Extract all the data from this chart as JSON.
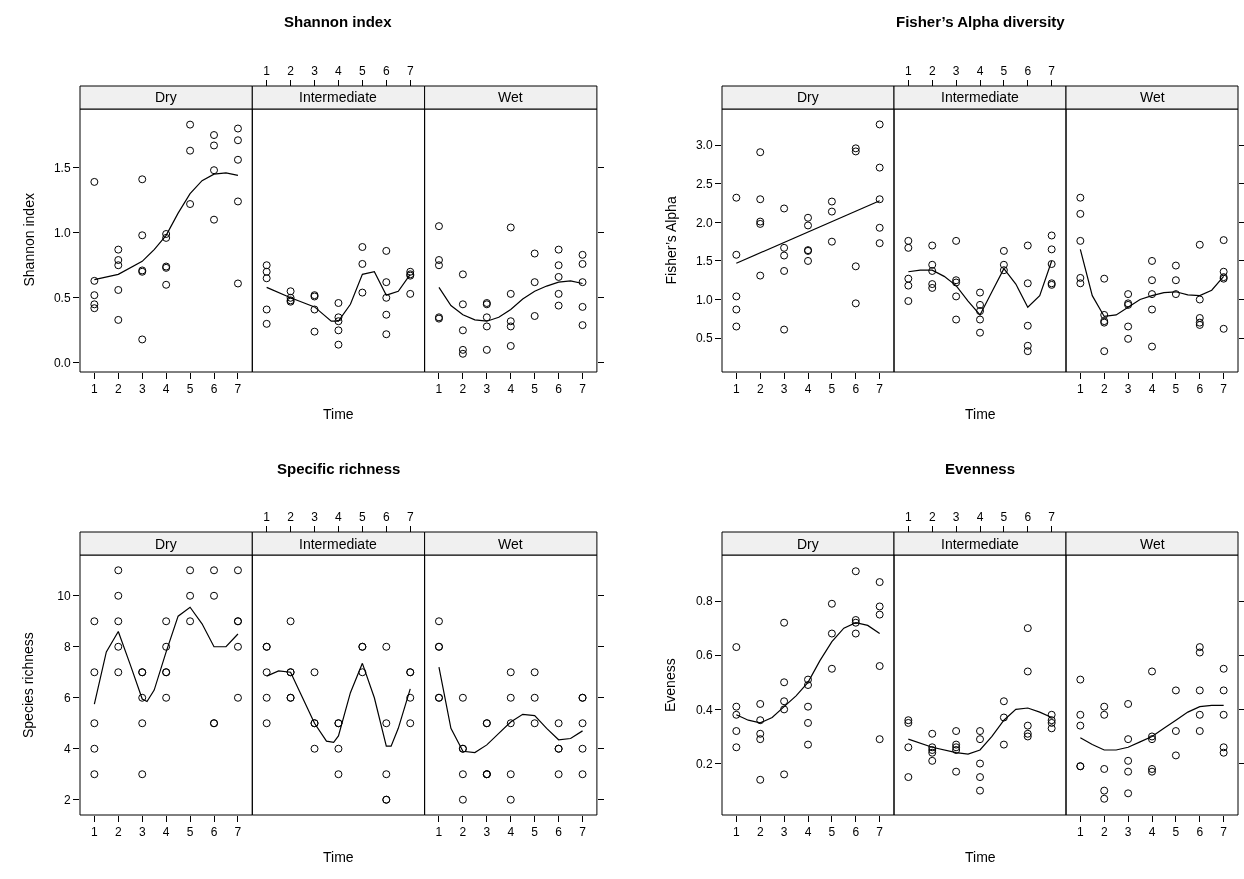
{
  "chart_data": [
    {
      "type": "scatter",
      "subtitle": "Dry",
      "ylabel": "Shannon index",
      "xlim": [
        0.4,
        7.6
      ],
      "xticks": [
        1,
        2,
        3,
        4,
        5,
        6,
        7
      ],
      "ylim": [
        -0.07,
        1.95
      ],
      "yticks": [
        {
          "value": 0,
          "label": "0.0"
        },
        0.5,
        {
          "value": 1,
          "label": "1.0"
        },
        1.5
      ],
      "series": [
        {
          "marker": "circle",
          "color": "#000000",
          "x": [
            1,
            1,
            1,
            1,
            1,
            2,
            2,
            2,
            2,
            2,
            3,
            3,
            3,
            3,
            3,
            4,
            4,
            4,
            4,
            4,
            5,
            5,
            5,
            6,
            6,
            6,
            6,
            7,
            7,
            7,
            7,
            7
          ],
          "values": [
            1.39,
            0.63,
            0.52,
            0.45,
            0.42,
            0.87,
            0.79,
            0.75,
            0.56,
            0.33,
            1.41,
            0.98,
            0.71,
            0.7,
            0.18,
            0.99,
            0.96,
            0.74,
            0.73,
            0.6,
            1.83,
            1.63,
            1.22,
            1.75,
            1.67,
            1.48,
            1.1,
            1.8,
            1.71,
            1.56,
            1.24,
            0.61
          ]
        },
        {
          "type": "line",
          "color": "#000000",
          "x": [
            1,
            2,
            3,
            3.5,
            4,
            4.5,
            5,
            5.5,
            6,
            6.5,
            7
          ],
          "values": [
            0.64,
            0.68,
            0.78,
            0.87,
            0.98,
            1.15,
            1.3,
            1.4,
            1.45,
            1.46,
            1.44
          ]
        }
      ]
    },
    {
      "type": "scatter",
      "title": "Shannon index",
      "subtitle": "Intermediate",
      "xlabel": "Time",
      "xlim": [
        0.4,
        7.6
      ],
      "xticks": [
        1,
        2,
        3,
        4,
        5,
        6,
        7
      ],
      "ylim": [
        -0.07,
        1.95
      ],
      "tick_labels": "x",
      "series": [
        {
          "marker": "circle",
          "color": "#000000",
          "x": [
            1,
            1,
            1,
            1,
            1,
            2,
            2,
            2,
            2,
            3,
            3,
            3,
            3,
            4,
            4,
            4,
            4,
            4,
            5,
            5,
            5,
            6,
            6,
            6,
            6,
            6,
            7,
            7,
            7,
            7
          ],
          "values": [
            0.75,
            0.7,
            0.65,
            0.41,
            0.3,
            0.55,
            0.5,
            0.48,
            0.47,
            0.52,
            0.51,
            0.41,
            0.24,
            0.46,
            0.35,
            0.32,
            0.25,
            0.14,
            0.89,
            0.76,
            0.54,
            0.86,
            0.62,
            0.5,
            0.37,
            0.22,
            0.7,
            0.68,
            0.67,
            0.53
          ]
        },
        {
          "type": "line",
          "color": "#000000",
          "x": [
            1,
            2,
            3,
            3.7,
            4,
            4.5,
            5,
            5.5,
            6,
            6.5,
            7
          ],
          "values": [
            0.58,
            0.5,
            0.43,
            0.32,
            0.32,
            0.45,
            0.68,
            0.7,
            0.52,
            0.55,
            0.68
          ]
        }
      ]
    },
    {
      "type": "scatter",
      "subtitle": "Wet",
      "xlim": [
        0.4,
        7.6
      ],
      "xticks": [
        1,
        2,
        3,
        4,
        5,
        6,
        7
      ],
      "ylim": [
        -0.07,
        1.95
      ],
      "yticks": [
        0,
        0.5,
        1,
        1.5
      ],
      "tick_labels": "x",
      "series": [
        {
          "marker": "circle",
          "color": "#000000",
          "x": [
            1,
            1,
            1,
            1,
            1,
            2,
            2,
            2,
            2,
            2,
            3,
            3,
            3,
            3,
            3,
            4,
            4,
            4,
            4,
            4,
            5,
            5,
            5,
            6,
            6,
            6,
            6,
            6,
            7,
            7,
            7,
            7,
            7
          ],
          "values": [
            1.05,
            0.79,
            0.75,
            0.35,
            0.34,
            0.68,
            0.45,
            0.25,
            0.1,
            0.07,
            0.46,
            0.45,
            0.35,
            0.28,
            0.1,
            1.04,
            0.53,
            0.32,
            0.28,
            0.13,
            0.84,
            0.62,
            0.36,
            0.87,
            0.75,
            0.66,
            0.53,
            0.44,
            0.83,
            0.76,
            0.62,
            0.43,
            0.29
          ]
        },
        {
          "type": "line",
          "color": "#000000",
          "x": [
            1,
            1.5,
            2,
            2.5,
            3,
            3.5,
            4,
            4.5,
            5,
            5.5,
            6,
            6.5,
            7
          ],
          "values": [
            0.58,
            0.44,
            0.37,
            0.33,
            0.32,
            0.35,
            0.41,
            0.49,
            0.55,
            0.59,
            0.62,
            0.63,
            0.61
          ]
        }
      ]
    },
    {
      "type": "scatter",
      "subtitle": "Dry",
      "ylabel": "Fisher’s Alpha",
      "xlim": [
        0.4,
        7.6
      ],
      "xticks": [
        1,
        2,
        3,
        4,
        5,
        6,
        7
      ],
      "ylim": [
        0.06,
        3.47
      ],
      "yticks": [
        0.5,
        {
          "value": 1,
          "label": "1.0"
        },
        1.5,
        {
          "value": 2,
          "label": "2.0"
        },
        2.5,
        {
          "value": 3,
          "label": "3.0"
        }
      ],
      "series": [
        {
          "marker": "circle",
          "color": "#000000",
          "x": [
            1,
            1,
            1,
            1,
            1,
            2,
            2,
            2,
            2,
            2,
            3,
            3,
            3,
            3,
            3,
            4,
            4,
            4,
            4,
            4,
            5,
            5,
            5,
            6,
            6,
            6,
            6,
            7,
            7,
            7,
            7,
            7
          ],
          "values": [
            2.32,
            1.58,
            1.04,
            0.87,
            0.65,
            2.91,
            2.3,
            2.01,
            1.98,
            1.31,
            2.18,
            1.67,
            1.57,
            1.37,
            0.61,
            2.06,
            1.96,
            1.64,
            1.63,
            1.5,
            2.27,
            2.14,
            1.75,
            2.96,
            2.92,
            1.43,
            0.95,
            3.27,
            2.71,
            2.3,
            1.93,
            1.73
          ]
        },
        {
          "type": "line",
          "color": "#000000",
          "x": [
            1,
            7
          ],
          "values": [
            1.47,
            2.28
          ]
        }
      ]
    },
    {
      "type": "scatter",
      "title": "Fisher’s Alpha diversity",
      "subtitle": "Intermediate",
      "xlabel": "Time",
      "xlim": [
        0.4,
        7.6
      ],
      "xticks": [
        1,
        2,
        3,
        4,
        5,
        6,
        7
      ],
      "ylim": [
        0.06,
        3.47
      ],
      "tick_labels": "x",
      "series": [
        {
          "marker": "circle",
          "color": "#000000",
          "x": [
            1,
            1,
            1,
            1,
            1,
            2,
            2,
            2,
            2,
            2,
            3,
            3,
            3,
            3,
            3,
            4,
            4,
            4,
            4,
            4,
            5,
            5,
            5,
            6,
            6,
            6,
            6,
            6,
            7,
            7,
            7,
            7,
            7
          ],
          "values": [
            1.76,
            1.67,
            1.27,
            1.18,
            0.98,
            1.7,
            1.45,
            1.37,
            1.2,
            1.15,
            1.76,
            1.25,
            1.22,
            1.04,
            0.74,
            1.09,
            0.93,
            0.85,
            0.74,
            0.57,
            1.63,
            1.45,
            1.38,
            1.7,
            1.21,
            0.66,
            0.4,
            0.33,
            1.83,
            1.65,
            1.46,
            1.21,
            1.19
          ]
        },
        {
          "type": "line",
          "color": "#000000",
          "x": [
            1,
            1.5,
            2,
            2.5,
            3,
            3.5,
            4,
            4.5,
            5,
            5.5,
            6,
            6.5,
            7
          ],
          "values": [
            1.36,
            1.38,
            1.38,
            1.3,
            1.18,
            0.98,
            0.8,
            1.1,
            1.4,
            1.2,
            0.9,
            1.05,
            1.5
          ]
        }
      ]
    },
    {
      "type": "scatter",
      "subtitle": "Wet",
      "xlim": [
        0.4,
        7.6
      ],
      "xticks": [
        1,
        2,
        3,
        4,
        5,
        6,
        7
      ],
      "ylim": [
        0.06,
        3.47
      ],
      "yticks": [
        0.5,
        1,
        1.5,
        2,
        2.5,
        3
      ],
      "tick_labels": "x",
      "series": [
        {
          "marker": "circle",
          "color": "#000000",
          "x": [
            1,
            1,
            1,
            1,
            1,
            2,
            2,
            2,
            2,
            2,
            3,
            3,
            3,
            3,
            3,
            4,
            4,
            4,
            4,
            4,
            5,
            5,
            5,
            6,
            6,
            6,
            6,
            6,
            7,
            7,
            7,
            7,
            7
          ],
          "values": [
            2.32,
            2.11,
            1.76,
            1.28,
            1.21,
            1.27,
            0.8,
            0.72,
            0.7,
            0.33,
            1.07,
            0.95,
            0.93,
            0.65,
            0.49,
            1.5,
            1.25,
            1.07,
            0.87,
            0.39,
            1.44,
            1.25,
            1.07,
            1.71,
            1.0,
            0.76,
            0.7,
            0.67,
            1.77,
            1.36,
            1.29,
            1.27,
            0.62
          ]
        },
        {
          "type": "line",
          "color": "#000000",
          "x": [
            1,
            1.5,
            2,
            2.5,
            3,
            3.5,
            4,
            4.5,
            5,
            5.5,
            6,
            6.5,
            7
          ],
          "values": [
            1.65,
            1.05,
            0.78,
            0.8,
            0.9,
            1.0,
            1.05,
            1.09,
            1.1,
            1.06,
            1.05,
            1.12,
            1.3
          ]
        }
      ]
    },
    {
      "type": "scatter",
      "subtitle": "Dry",
      "ylabel": "Species richness",
      "xlim": [
        0.4,
        7.6
      ],
      "xticks": [
        1,
        2,
        3,
        4,
        5,
        6,
        7
      ],
      "ylim": [
        1.4,
        11.6
      ],
      "yticks": [
        2,
        4,
        6,
        8,
        10
      ],
      "series": [
        {
          "marker": "circle",
          "color": "#000000",
          "x": [
            1,
            1,
            1,
            1,
            1,
            2,
            2,
            2,
            2,
            2,
            3,
            3,
            3,
            3,
            3,
            4,
            4,
            4,
            4,
            4,
            5,
            5,
            5,
            6,
            6,
            6,
            6,
            7,
            7,
            7,
            7,
            7
          ],
          "values": [
            9,
            7,
            5,
            4,
            3,
            11,
            10,
            9,
            8,
            7,
            7,
            7,
            6,
            5,
            3,
            9,
            8,
            7,
            7,
            6,
            11,
            10,
            9,
            11,
            10,
            5,
            5,
            11,
            9,
            9,
            8,
            6
          ]
        },
        {
          "type": "line",
          "color": "#000000",
          "x": [
            1,
            1.5,
            2,
            2.5,
            3,
            3.2,
            3.5,
            4,
            4.5,
            5,
            5.5,
            6,
            6.5,
            7
          ],
          "values": [
            5.75,
            7.8,
            8.6,
            7.3,
            5.95,
            5.85,
            6.3,
            7.8,
            9.2,
            9.55,
            8.9,
            8.0,
            8.0,
            8.5
          ]
        }
      ]
    },
    {
      "type": "scatter",
      "title": "Specific richness",
      "subtitle": "Intermediate",
      "xlabel": "Time",
      "xlim": [
        0.4,
        7.6
      ],
      "xticks": [
        1,
        2,
        3,
        4,
        5,
        6,
        7
      ],
      "ylim": [
        1.4,
        11.6
      ],
      "tick_labels": "x",
      "series": [
        {
          "marker": "circle",
          "color": "#000000",
          "x": [
            1,
            1,
            1,
            1,
            1,
            2,
            2,
            2,
            2,
            2,
            3,
            3,
            3,
            3,
            4,
            4,
            4,
            4,
            5,
            5,
            5,
            6,
            6,
            6,
            6,
            6,
            7,
            7,
            7,
            7
          ],
          "values": [
            8,
            8,
            7,
            6,
            5,
            9,
            7,
            7,
            6,
            6,
            7,
            5,
            5,
            4,
            5,
            5,
            4,
            3,
            8,
            8,
            7,
            8,
            5,
            3,
            2,
            2,
            7,
            7,
            6,
            5
          ]
        },
        {
          "type": "line",
          "color": "#000000",
          "x": [
            1,
            1.5,
            2,
            2.5,
            3,
            3.5,
            3.8,
            4,
            4.5,
            5,
            5.5,
            6,
            6.2,
            6.5,
            7
          ],
          "values": [
            6.85,
            7.05,
            7.0,
            6.0,
            5.0,
            4.3,
            4.25,
            4.5,
            6.2,
            7.35,
            6.0,
            4.1,
            4.1,
            4.8,
            6.35
          ]
        }
      ]
    },
    {
      "type": "scatter",
      "subtitle": "Wet",
      "xlim": [
        0.4,
        7.6
      ],
      "xticks": [
        1,
        2,
        3,
        4,
        5,
        6,
        7
      ],
      "ylim": [
        1.4,
        11.6
      ],
      "yticks": [
        2,
        4,
        6,
        8,
        10
      ],
      "tick_labels": "x",
      "series": [
        {
          "marker": "circle",
          "color": "#000000",
          "x": [
            1,
            1,
            1,
            1,
            1,
            2,
            2,
            2,
            2,
            2,
            3,
            3,
            3,
            3,
            3,
            4,
            4,
            4,
            4,
            4,
            5,
            5,
            5,
            6,
            6,
            6,
            6,
            7,
            7,
            7,
            7,
            7
          ],
          "values": [
            9,
            8,
            8,
            6,
            6,
            6,
            4,
            4,
            3,
            2,
            5,
            5,
            3,
            3,
            3,
            7,
            6,
            5,
            3,
            2,
            7,
            6,
            5,
            5,
            4,
            4,
            3,
            6,
            6,
            5,
            4,
            3
          ]
        },
        {
          "type": "line",
          "color": "#000000",
          "x": [
            1,
            1.5,
            2,
            2.5,
            3,
            3.5,
            4,
            4.5,
            5,
            5.5,
            6,
            6.5,
            7
          ],
          "values": [
            7.2,
            4.8,
            3.9,
            3.85,
            4.15,
            4.6,
            5.05,
            5.35,
            5.3,
            4.8,
            4.35,
            4.4,
            4.7
          ]
        }
      ]
    },
    {
      "type": "scatter",
      "subtitle": "Dry",
      "ylabel": "Eveness",
      "xlim": [
        0.4,
        7.6
      ],
      "xticks": [
        1,
        2,
        3,
        4,
        5,
        6,
        7
      ],
      "ylim": [
        0.01,
        0.97
      ],
      "yticks": [
        0.2,
        0.4,
        0.6,
        0.8
      ],
      "series": [
        {
          "marker": "circle",
          "color": "#000000",
          "x": [
            1,
            1,
            1,
            1,
            1,
            2,
            2,
            2,
            2,
            2,
            3,
            3,
            3,
            3,
            3,
            4,
            4,
            4,
            4,
            4,
            5,
            5,
            5,
            6,
            6,
            6,
            6,
            7,
            7,
            7,
            7,
            7
          ],
          "values": [
            0.63,
            0.41,
            0.38,
            0.32,
            0.26,
            0.42,
            0.36,
            0.31,
            0.29,
            0.14,
            0.72,
            0.5,
            0.43,
            0.4,
            0.16,
            0.51,
            0.49,
            0.41,
            0.35,
            0.27,
            0.79,
            0.68,
            0.55,
            0.91,
            0.73,
            0.72,
            0.68,
            0.87,
            0.78,
            0.75,
            0.56,
            0.29
          ]
        },
        {
          "type": "line",
          "color": "#000000",
          "x": [
            1,
            1.5,
            2,
            2.5,
            3,
            3.5,
            4,
            4.5,
            5,
            5.5,
            6,
            6.5,
            7
          ],
          "values": [
            0.38,
            0.36,
            0.35,
            0.37,
            0.41,
            0.45,
            0.5,
            0.58,
            0.65,
            0.7,
            0.72,
            0.71,
            0.68
          ]
        }
      ]
    },
    {
      "type": "scatter",
      "title": "Evenness",
      "subtitle": "Intermediate",
      "xlabel": "Time",
      "xlim": [
        0.4,
        7.6
      ],
      "xticks": [
        1,
        2,
        3,
        4,
        5,
        6,
        7
      ],
      "ylim": [
        0.01,
        0.97
      ],
      "tick_labels": "x",
      "series": [
        {
          "marker": "circle",
          "color": "#000000",
          "x": [
            1,
            1,
            1,
            1,
            2,
            2,
            2,
            2,
            2,
            3,
            3,
            3,
            3,
            3,
            4,
            4,
            4,
            4,
            4,
            5,
            5,
            5,
            6,
            6,
            6,
            6,
            6,
            7,
            7,
            7,
            7
          ],
          "values": [
            0.36,
            0.35,
            0.26,
            0.15,
            0.31,
            0.26,
            0.25,
            0.24,
            0.21,
            0.32,
            0.27,
            0.26,
            0.25,
            0.17,
            0.32,
            0.29,
            0.2,
            0.15,
            0.1,
            0.43,
            0.37,
            0.27,
            0.7,
            0.54,
            0.34,
            0.31,
            0.3,
            0.38,
            0.36,
            0.35,
            0.33
          ]
        },
        {
          "type": "line",
          "color": "#000000",
          "x": [
            1,
            2,
            3,
            3.5,
            4,
            4.5,
            5,
            5.5,
            6,
            6.5,
            7
          ],
          "values": [
            0.29,
            0.26,
            0.24,
            0.235,
            0.25,
            0.3,
            0.36,
            0.4,
            0.405,
            0.39,
            0.37
          ]
        }
      ]
    },
    {
      "type": "scatter",
      "subtitle": "Wet",
      "xlim": [
        0.4,
        7.6
      ],
      "xticks": [
        1,
        2,
        3,
        4,
        5,
        6,
        7
      ],
      "ylim": [
        0.01,
        0.97
      ],
      "yticks": [
        0.2,
        0.4,
        0.6,
        0.8
      ],
      "tick_labels": "x",
      "series": [
        {
          "marker": "circle",
          "color": "#000000",
          "x": [
            1,
            1,
            1,
            1,
            1,
            2,
            2,
            2,
            2,
            2,
            3,
            3,
            3,
            3,
            3,
            4,
            4,
            4,
            4,
            4,
            5,
            5,
            5,
            6,
            6,
            6,
            6,
            6,
            7,
            7,
            7,
            7,
            7
          ],
          "values": [
            0.51,
            0.38,
            0.34,
            0.19,
            0.19,
            0.41,
            0.38,
            0.18,
            0.1,
            0.07,
            0.42,
            0.29,
            0.21,
            0.17,
            0.09,
            0.54,
            0.3,
            0.29,
            0.18,
            0.17,
            0.47,
            0.32,
            0.23,
            0.63,
            0.61,
            0.47,
            0.38,
            0.32,
            0.55,
            0.47,
            0.38,
            0.26,
            0.24
          ]
        },
        {
          "type": "line",
          "color": "#000000",
          "x": [
            1,
            1.5,
            2,
            2.5,
            3,
            3.5,
            4,
            4.5,
            5,
            5.5,
            6,
            6.5,
            7
          ],
          "values": [
            0.295,
            0.27,
            0.25,
            0.25,
            0.26,
            0.28,
            0.3,
            0.33,
            0.36,
            0.39,
            0.41,
            0.415,
            0.415
          ]
        }
      ]
    }
  ]
}
